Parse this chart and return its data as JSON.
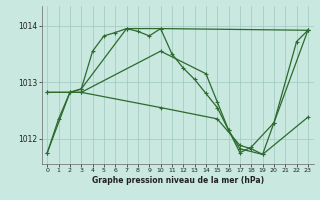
{
  "bg_color": "#c8e8e0",
  "grid_color": "#a0c8c0",
  "line_color": "#2d6a2d",
  "xlabel": "Graphe pression niveau de la mer (hPa)",
  "xlim": [
    -0.5,
    23.5
  ],
  "ylim": [
    1011.55,
    1014.35
  ],
  "yticks": [
    1012,
    1013,
    1014
  ],
  "xticks": [
    0,
    1,
    2,
    3,
    4,
    5,
    6,
    7,
    8,
    9,
    10,
    11,
    12,
    13,
    14,
    15,
    16,
    17,
    18,
    19,
    20,
    21,
    22,
    23
  ],
  "series1": [
    [
      0,
      1011.75
    ],
    [
      1,
      1012.35
    ],
    [
      2,
      1012.82
    ],
    [
      3,
      1012.88
    ],
    [
      4,
      1013.55
    ],
    [
      5,
      1013.82
    ],
    [
      6,
      1013.88
    ],
    [
      7,
      1013.95
    ],
    [
      8,
      1013.9
    ],
    [
      9,
      1013.82
    ],
    [
      10,
      1013.95
    ],
    [
      11,
      1013.5
    ],
    [
      12,
      1013.25
    ],
    [
      13,
      1013.05
    ],
    [
      14,
      1012.8
    ],
    [
      15,
      1012.55
    ],
    [
      16,
      1012.15
    ],
    [
      17,
      1011.75
    ],
    [
      18,
      1011.85
    ],
    [
      20,
      1012.28
    ],
    [
      22,
      1013.72
    ],
    [
      23,
      1013.92
    ]
  ],
  "series2": [
    [
      0,
      1011.75
    ],
    [
      2,
      1012.82
    ],
    [
      3,
      1012.88
    ],
    [
      7,
      1013.95
    ],
    [
      10,
      1013.95
    ],
    [
      23,
      1013.92
    ]
  ],
  "series3": [
    [
      0,
      1012.82
    ],
    [
      3,
      1012.82
    ],
    [
      10,
      1012.55
    ],
    [
      15,
      1012.35
    ],
    [
      17,
      1011.88
    ],
    [
      18,
      1011.82
    ],
    [
      19,
      1011.72
    ],
    [
      23,
      1012.38
    ]
  ],
  "series4": [
    [
      0,
      1012.82
    ],
    [
      3,
      1012.82
    ],
    [
      10,
      1013.55
    ],
    [
      14,
      1013.15
    ],
    [
      15,
      1012.65
    ],
    [
      16,
      1012.15
    ],
    [
      17,
      1011.82
    ],
    [
      19,
      1011.72
    ],
    [
      20,
      1012.28
    ],
    [
      23,
      1013.92
    ]
  ]
}
